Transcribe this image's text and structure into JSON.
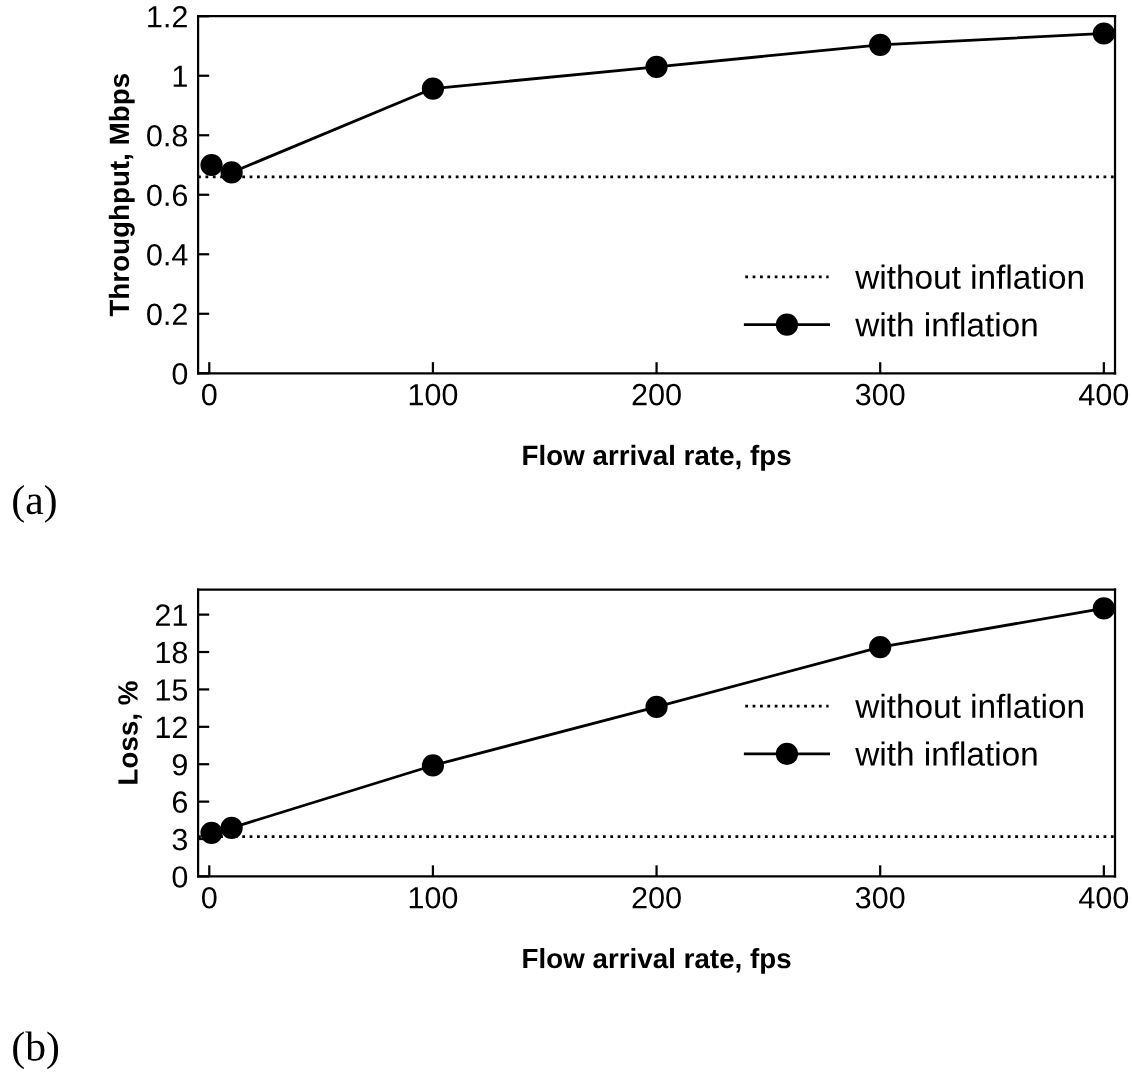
{
  "chart_data": [
    {
      "type": "line",
      "xlabel": "Flow arrival rate, fps",
      "ylabel": "Throughput, Mbps",
      "annotations": [
        "(a)"
      ],
      "xlim": [
        -5,
        405
      ],
      "xticks": [
        0,
        100,
        200,
        300,
        400
      ],
      "ylim": [
        0,
        1.2
      ],
      "yticks": [
        0,
        0.2,
        0.4,
        0.6,
        0.8,
        1,
        1.2
      ],
      "legend": "bottom right",
      "grid": false,
      "series": [
        {
          "name": "without inflation",
          "color": "#000000",
          "x": [
            -5,
            405
          ],
          "values": [
            0.66,
            0.66
          ],
          "line_style": "dotted",
          "marker": "none"
        },
        {
          "name": "with inflation",
          "color": "#000000",
          "x": [
            1,
            10,
            100,
            200,
            300,
            400
          ],
          "values": [
            0.7,
            0.675,
            0.957,
            1.03,
            1.104,
            1.142
          ],
          "line_style": "solid",
          "marker": "circle"
        }
      ]
    },
    {
      "type": "line",
      "xlabel": "Flow arrival rate, fps",
      "ylabel": "Loss, %",
      "annotations": [
        "(b)"
      ],
      "xlim": [
        -5,
        405
      ],
      "xticks": [
        0,
        100,
        200,
        300,
        400
      ],
      "ylim": [
        0,
        23
      ],
      "yticks": [
        0,
        3,
        6,
        9,
        12,
        15,
        18,
        21
      ],
      "legend": "right",
      "grid": false,
      "series": [
        {
          "name": "without inflation",
          "color": "#000000",
          "x": [
            -5,
            405
          ],
          "values": [
            3.2,
            3.2
          ],
          "line_style": "dotted",
          "marker": "none"
        },
        {
          "name": "with inflation",
          "color": "#000000",
          "x": [
            1,
            10,
            100,
            200,
            300,
            400
          ],
          "values": [
            3.5,
            3.9,
            8.9,
            13.6,
            18.4,
            21.5
          ],
          "line_style": "solid",
          "marker": "circle"
        }
      ]
    }
  ]
}
